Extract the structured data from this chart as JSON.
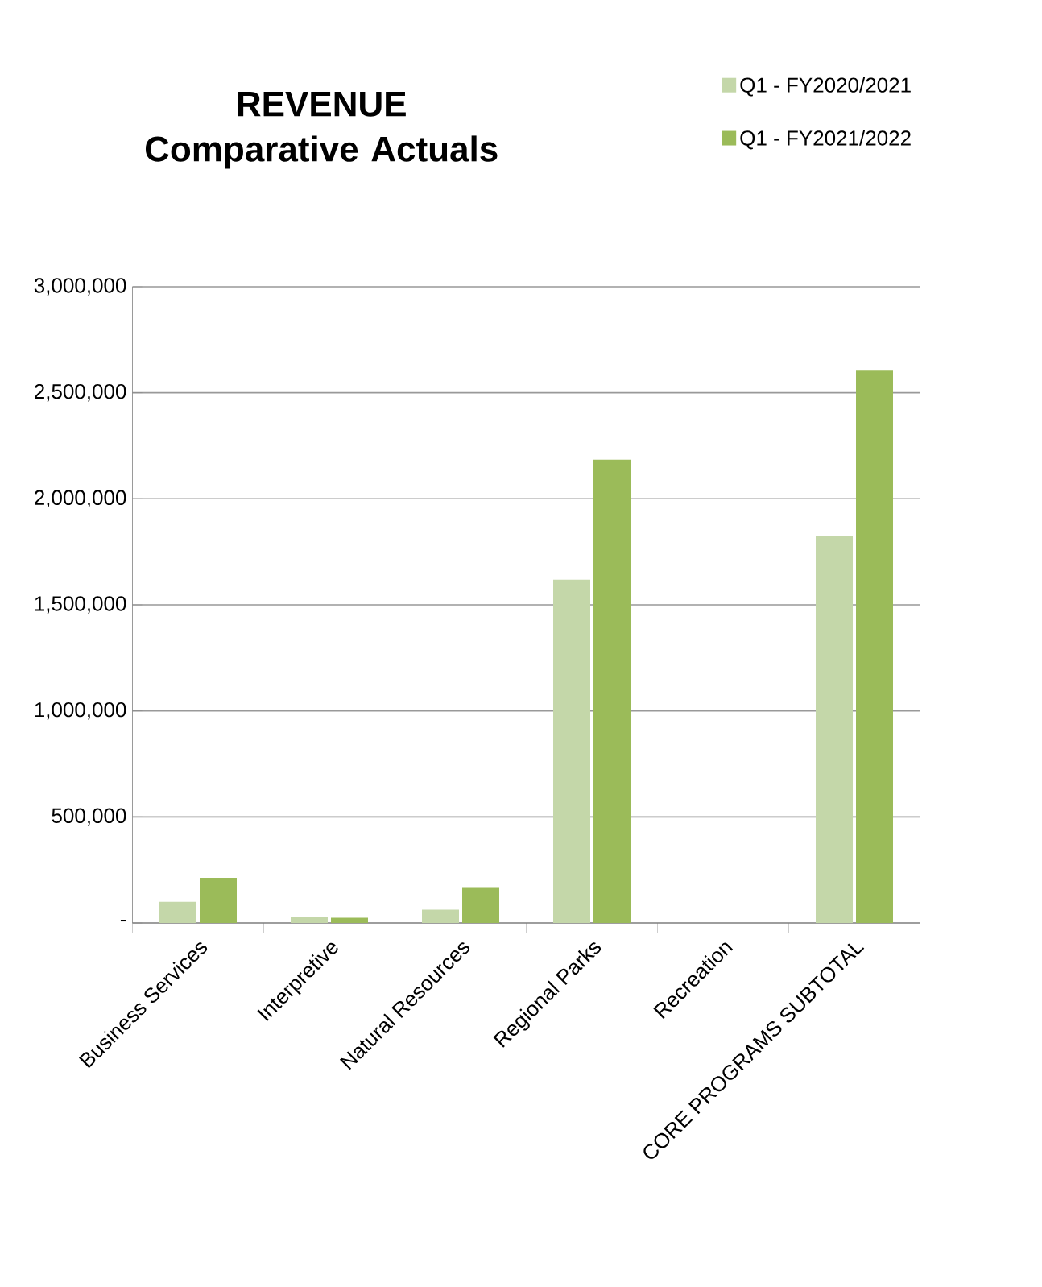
{
  "chart_data": {
    "type": "bar",
    "title": "REVENUE Comparative Actuals",
    "categories": [
      "Business Services",
      "Interpretive",
      "Natural Resources",
      "Regional Parks",
      "Recreation",
      "CORE PROGRAMS SUBTOTAL"
    ],
    "series": [
      {
        "name": "Q1 - FY2020/2021",
        "color": "#c4d7a9",
        "values": [
          100000,
          28000,
          63000,
          1619000,
          0,
          1826000
        ]
      },
      {
        "name": "Q1 - FY2021/2022",
        "color": "#9bbb59",
        "values": [
          213000,
          25000,
          169000,
          2184000,
          0,
          2604000
        ]
      }
    ],
    "ylim": [
      0,
      3000000
    ],
    "yticks": [
      {
        "value": 0,
        "label": "-"
      },
      {
        "value": 500000,
        "label": "500,000"
      },
      {
        "value": 1000000,
        "label": "1,000,000"
      },
      {
        "value": 1500000,
        "label": "1,500,000"
      },
      {
        "value": 2000000,
        "label": "2,000,000"
      },
      {
        "value": 2500000,
        "label": "2,500,000"
      },
      {
        "value": 3000000,
        "label": "3,000,000"
      }
    ],
    "grid": "y",
    "legend": "top right"
  }
}
